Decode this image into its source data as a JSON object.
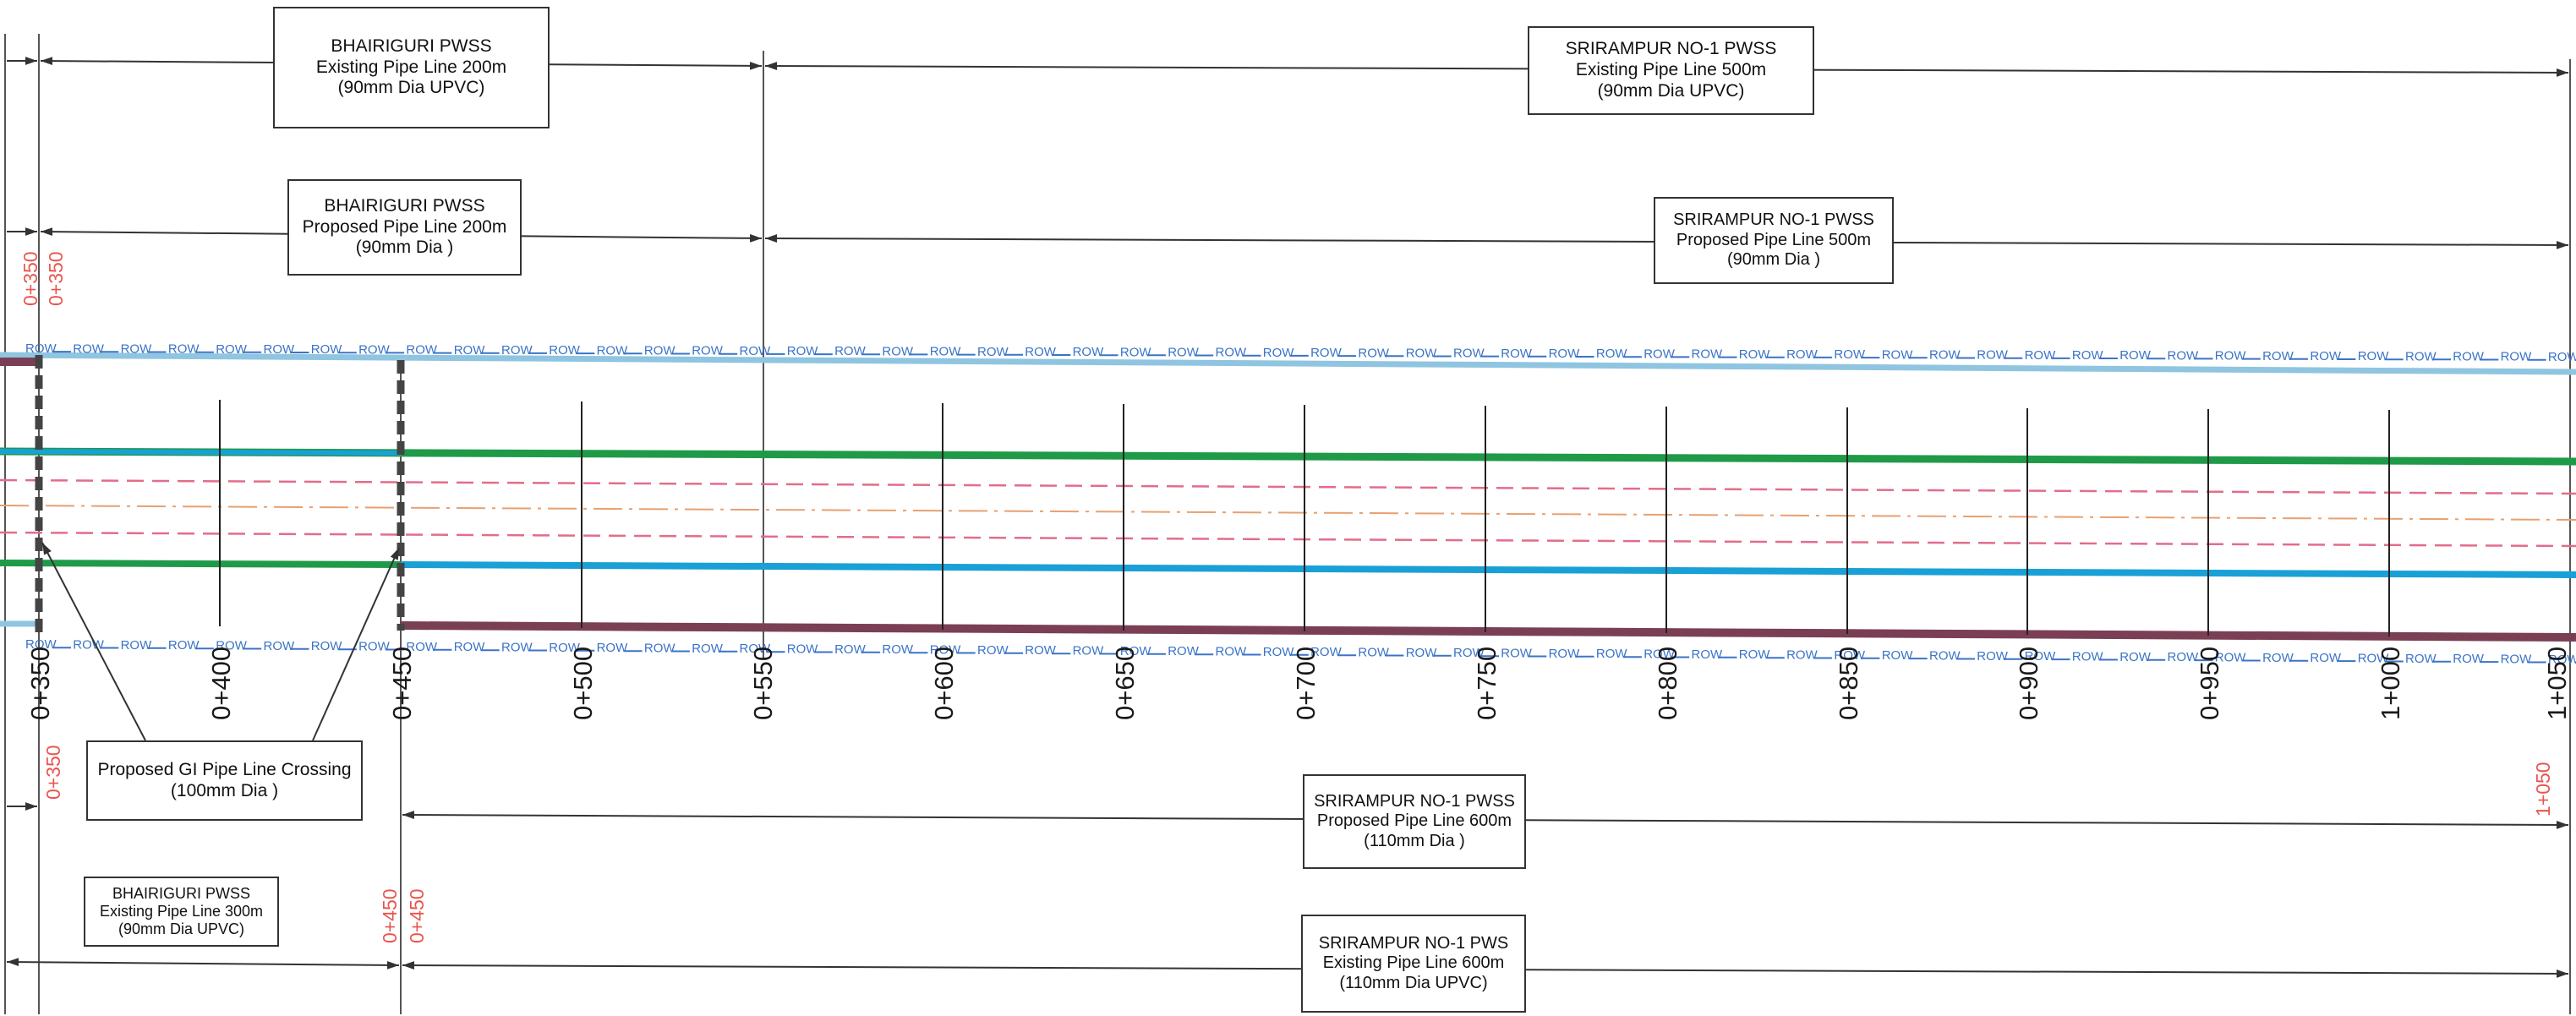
{
  "colors": {
    "row_line": "#8fc5e0",
    "row_text": "#3a73c8",
    "green_line": "#1f9a48",
    "blue_line": "#19a0d6",
    "purple_line": "#7b3f55",
    "red_dash": "#e26d8a",
    "orange_center": "#e8a070",
    "chainage_red": "#e8564f",
    "crossing": "#444444"
  },
  "row_marker": "ROW",
  "chainages": [
    "0+350",
    "0+400",
    "0+450",
    "0+500",
    "0+550",
    "0+600",
    "0+650",
    "0+700",
    "0+750",
    "0+800",
    "0+850",
    "0+900",
    "0+950",
    "1+000",
    "1+050"
  ],
  "red_chainages": {
    "top_left_a": "0+350",
    "top_left_b": "0+350",
    "mid_left": "0+350",
    "bottom_a": "0+450",
    "bottom_b": "0+450",
    "right": "1+050"
  },
  "boxes": {
    "bhairiguri_existing_top": {
      "line1": "BHAIRIGURI PWSS",
      "line2": "Existing Pipe Line 200m",
      "line3": "(90mm Dia UPVC)"
    },
    "srirampur_existing_top": {
      "line1": "SRIRAMPUR NO-1 PWSS",
      "line2": "Existing Pipe Line 500m",
      "line3": "(90mm Dia UPVC)"
    },
    "bhairiguri_proposed": {
      "line1": "BHAIRIGURI PWSS",
      "line2": "Proposed Pipe Line 200m",
      "line3": "(90mm Dia )"
    },
    "srirampur_proposed_top": {
      "line1": "SRIRAMPUR NO-1 PWSS",
      "line2": "Proposed Pipe Line 500m",
      "line3": "(90mm Dia )"
    },
    "gi_crossing": {
      "line1": "Proposed GI Pipe Line Crossing",
      "line2": "(100mm Dia )"
    },
    "srirampur_proposed_bottom": {
      "line1": "SRIRAMPUR NO-1 PWSS",
      "line2": "Proposed Pipe Line 600m",
      "line3": "(110mm Dia )"
    },
    "bhairiguri_existing_bottom": {
      "line1": "BHAIRIGURI PWSS",
      "line2": "Existing Pipe Line 300m",
      "line3": "(90mm Dia UPVC)"
    },
    "srirampur_existing_bottom": {
      "line1": "SRIRAMPUR NO-1 PWS",
      "line2": "Existing Pipe Line 600m",
      "line3": "(110mm Dia UPVC)"
    }
  }
}
